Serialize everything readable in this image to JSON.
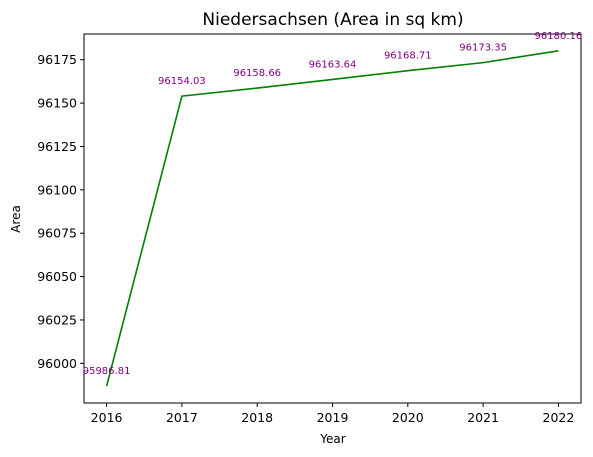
{
  "chart_data": {
    "type": "line",
    "title": "Niedersachsen (Area in sq km)",
    "xlabel": "Year",
    "ylabel": "Area",
    "x": [
      2016,
      2017,
      2018,
      2019,
      2020,
      2021,
      2022
    ],
    "series": [
      {
        "values": [
          95986.81,
          96154.03,
          96158.66,
          96163.64,
          96168.71,
          96173.35,
          96180.16
        ],
        "color": "#008000"
      }
    ],
    "data_labels": [
      "95986.81",
      "96154.03",
      "96158.66",
      "96163.64",
      "96168.71",
      "96173.35",
      "96180.16"
    ],
    "data_label_color": "#800080",
    "xlim": [
      2015.7,
      2022.3
    ],
    "ylim": [
      95977.13,
      96189.84
    ],
    "xticks": [
      "2016",
      "2017",
      "2018",
      "2019",
      "2020",
      "2021",
      "2022"
    ],
    "yticks": [
      "96000",
      "96025",
      "96050",
      "96075",
      "96100",
      "96125",
      "96150",
      "96175"
    ],
    "grid": false,
    "legend": "none"
  }
}
